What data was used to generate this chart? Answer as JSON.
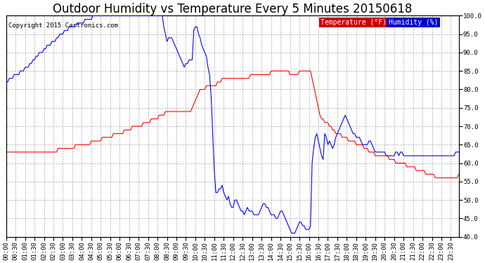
{
  "title": "Outdoor Humidity vs Temperature Every 5 Minutes 20150618",
  "copyright": "Copyright 2015 Cartronics.com",
  "legend_temp": "Temperature (°F)",
  "legend_hum": "Humidity (%)",
  "temp_color": "red",
  "hum_color": "blue",
  "temp_bg": "#cc0000",
  "hum_bg": "#0000cc",
  "y_min": 40.0,
  "y_max": 100.0,
  "background_color": "white",
  "grid_color": "#aaaaaa",
  "title_fontsize": 12,
  "tick_fontsize": 6.5,
  "hum_data": [
    82,
    82,
    83,
    83,
    83,
    84,
    84,
    84,
    84,
    85,
    85,
    85,
    86,
    86,
    86,
    87,
    87,
    88,
    88,
    89,
    89,
    90,
    90,
    90,
    91,
    91,
    92,
    92,
    92,
    93,
    93,
    93,
    94,
    94,
    95,
    95,
    95,
    96,
    96,
    96,
    97,
    97,
    97,
    97,
    97,
    98,
    98,
    98,
    98,
    98,
    99,
    99,
    99,
    99,
    99,
    100,
    100,
    100,
    100,
    100,
    100,
    100,
    100,
    100,
    100,
    100,
    100,
    100,
    100,
    100,
    100,
    100,
    100,
    100,
    100,
    100,
    100,
    100,
    100,
    100,
    100,
    100,
    100,
    100,
    100,
    100,
    100,
    100,
    100,
    100,
    100,
    100,
    100,
    100,
    100,
    100,
    100,
    100,
    100,
    100,
    97,
    95,
    93,
    94,
    94,
    94,
    93,
    92,
    91,
    90,
    89,
    88,
    87,
    86,
    87,
    87,
    88,
    88,
    88,
    96,
    97,
    97,
    95,
    94,
    92,
    91,
    90,
    89,
    86,
    84,
    78,
    68,
    58,
    52,
    52,
    53,
    53,
    54,
    52,
    51,
    50,
    51,
    49,
    48,
    48,
    50,
    50,
    49,
    48,
    47,
    47,
    46,
    47,
    48,
    47,
    47,
    47,
    46,
    46,
    46,
    46,
    47,
    48,
    49,
    49,
    48,
    48,
    47,
    46,
    46,
    46,
    45,
    45,
    46,
    47,
    47,
    46,
    45,
    44,
    43,
    42,
    41,
    41,
    41,
    42,
    43,
    44,
    44,
    43,
    43,
    42,
    42,
    42,
    43,
    60,
    64,
    67,
    68,
    66,
    64,
    62,
    61,
    68,
    67,
    65,
    66,
    65,
    64,
    65,
    67,
    68,
    69,
    70,
    71,
    72,
    73,
    72,
    71,
    70,
    69,
    68,
    68,
    67,
    67,
    67,
    66,
    65,
    65,
    65,
    65,
    66,
    66,
    65,
    64,
    63,
    63,
    63,
    63,
    63,
    63,
    63,
    62,
    62,
    62,
    62,
    62,
    62,
    63,
    63,
    62,
    63,
    63,
    62,
    62,
    62,
    62,
    62,
    62,
    62,
    62,
    62,
    62,
    62,
    62,
    62,
    62,
    62,
    62,
    62,
    62,
    62,
    62,
    62,
    62,
    62,
    62,
    62,
    62,
    62,
    62,
    62,
    62,
    62,
    62,
    62,
    63,
    63,
    63
  ],
  "temp_data": [
    63,
    63,
    63,
    63,
    63,
    63,
    63,
    63,
    63,
    63,
    63,
    63,
    63,
    63,
    63,
    63,
    63,
    63,
    63,
    63,
    63,
    63,
    63,
    63,
    63,
    63,
    63,
    63,
    63,
    63,
    63,
    63,
    63,
    64,
    64,
    64,
    64,
    64,
    64,
    64,
    64,
    64,
    64,
    64,
    65,
    65,
    65,
    65,
    65,
    65,
    65,
    65,
    65,
    65,
    66,
    66,
    66,
    66,
    66,
    66,
    66,
    67,
    67,
    67,
    67,
    67,
    67,
    67,
    68,
    68,
    68,
    68,
    68,
    68,
    68,
    69,
    69,
    69,
    69,
    69,
    70,
    70,
    70,
    70,
    70,
    70,
    70,
    71,
    71,
    71,
    71,
    71,
    72,
    72,
    72,
    72,
    72,
    73,
    73,
    73,
    73,
    74,
    74,
    74,
    74,
    74,
    74,
    74,
    74,
    74,
    74,
    74,
    74,
    74,
    74,
    74,
    74,
    74,
    75,
    76,
    77,
    78,
    79,
    80,
    80,
    80,
    80,
    81,
    81,
    81,
    81,
    81,
    81,
    81,
    82,
    82,
    82,
    83,
    83,
    83,
    83,
    83,
    83,
    83,
    83,
    83,
    83,
    83,
    83,
    83,
    83,
    83,
    83,
    83,
    83,
    84,
    84,
    84,
    84,
    84,
    84,
    84,
    84,
    84,
    84,
    84,
    84,
    84,
    85,
    85,
    85,
    85,
    85,
    85,
    85,
    85,
    85,
    85,
    85,
    85,
    84,
    84,
    84,
    84,
    84,
    84,
    85,
    85,
    85,
    85,
    85,
    85,
    85,
    85,
    83,
    81,
    79,
    77,
    75,
    73,
    72,
    72,
    71,
    71,
    71,
    70,
    70,
    69,
    69,
    68,
    68,
    68,
    68,
    67,
    67,
    67,
    67,
    66,
    66,
    66,
    66,
    66,
    65,
    65,
    65,
    65,
    65,
    64,
    64,
    64,
    63,
    63,
    63,
    63,
    62,
    62,
    62,
    62,
    62,
    62,
    62,
    62,
    62,
    61,
    61,
    61,
    61,
    60,
    60,
    60,
    60,
    60,
    60,
    60,
    59,
    59,
    59,
    59,
    59,
    59,
    58,
    58,
    58,
    58,
    58,
    58,
    57,
    57,
    57,
    57,
    57,
    57,
    56,
    56,
    56,
    56,
    56,
    56,
    56,
    56,
    56,
    56,
    56,
    56,
    56,
    56,
    56,
    57
  ]
}
